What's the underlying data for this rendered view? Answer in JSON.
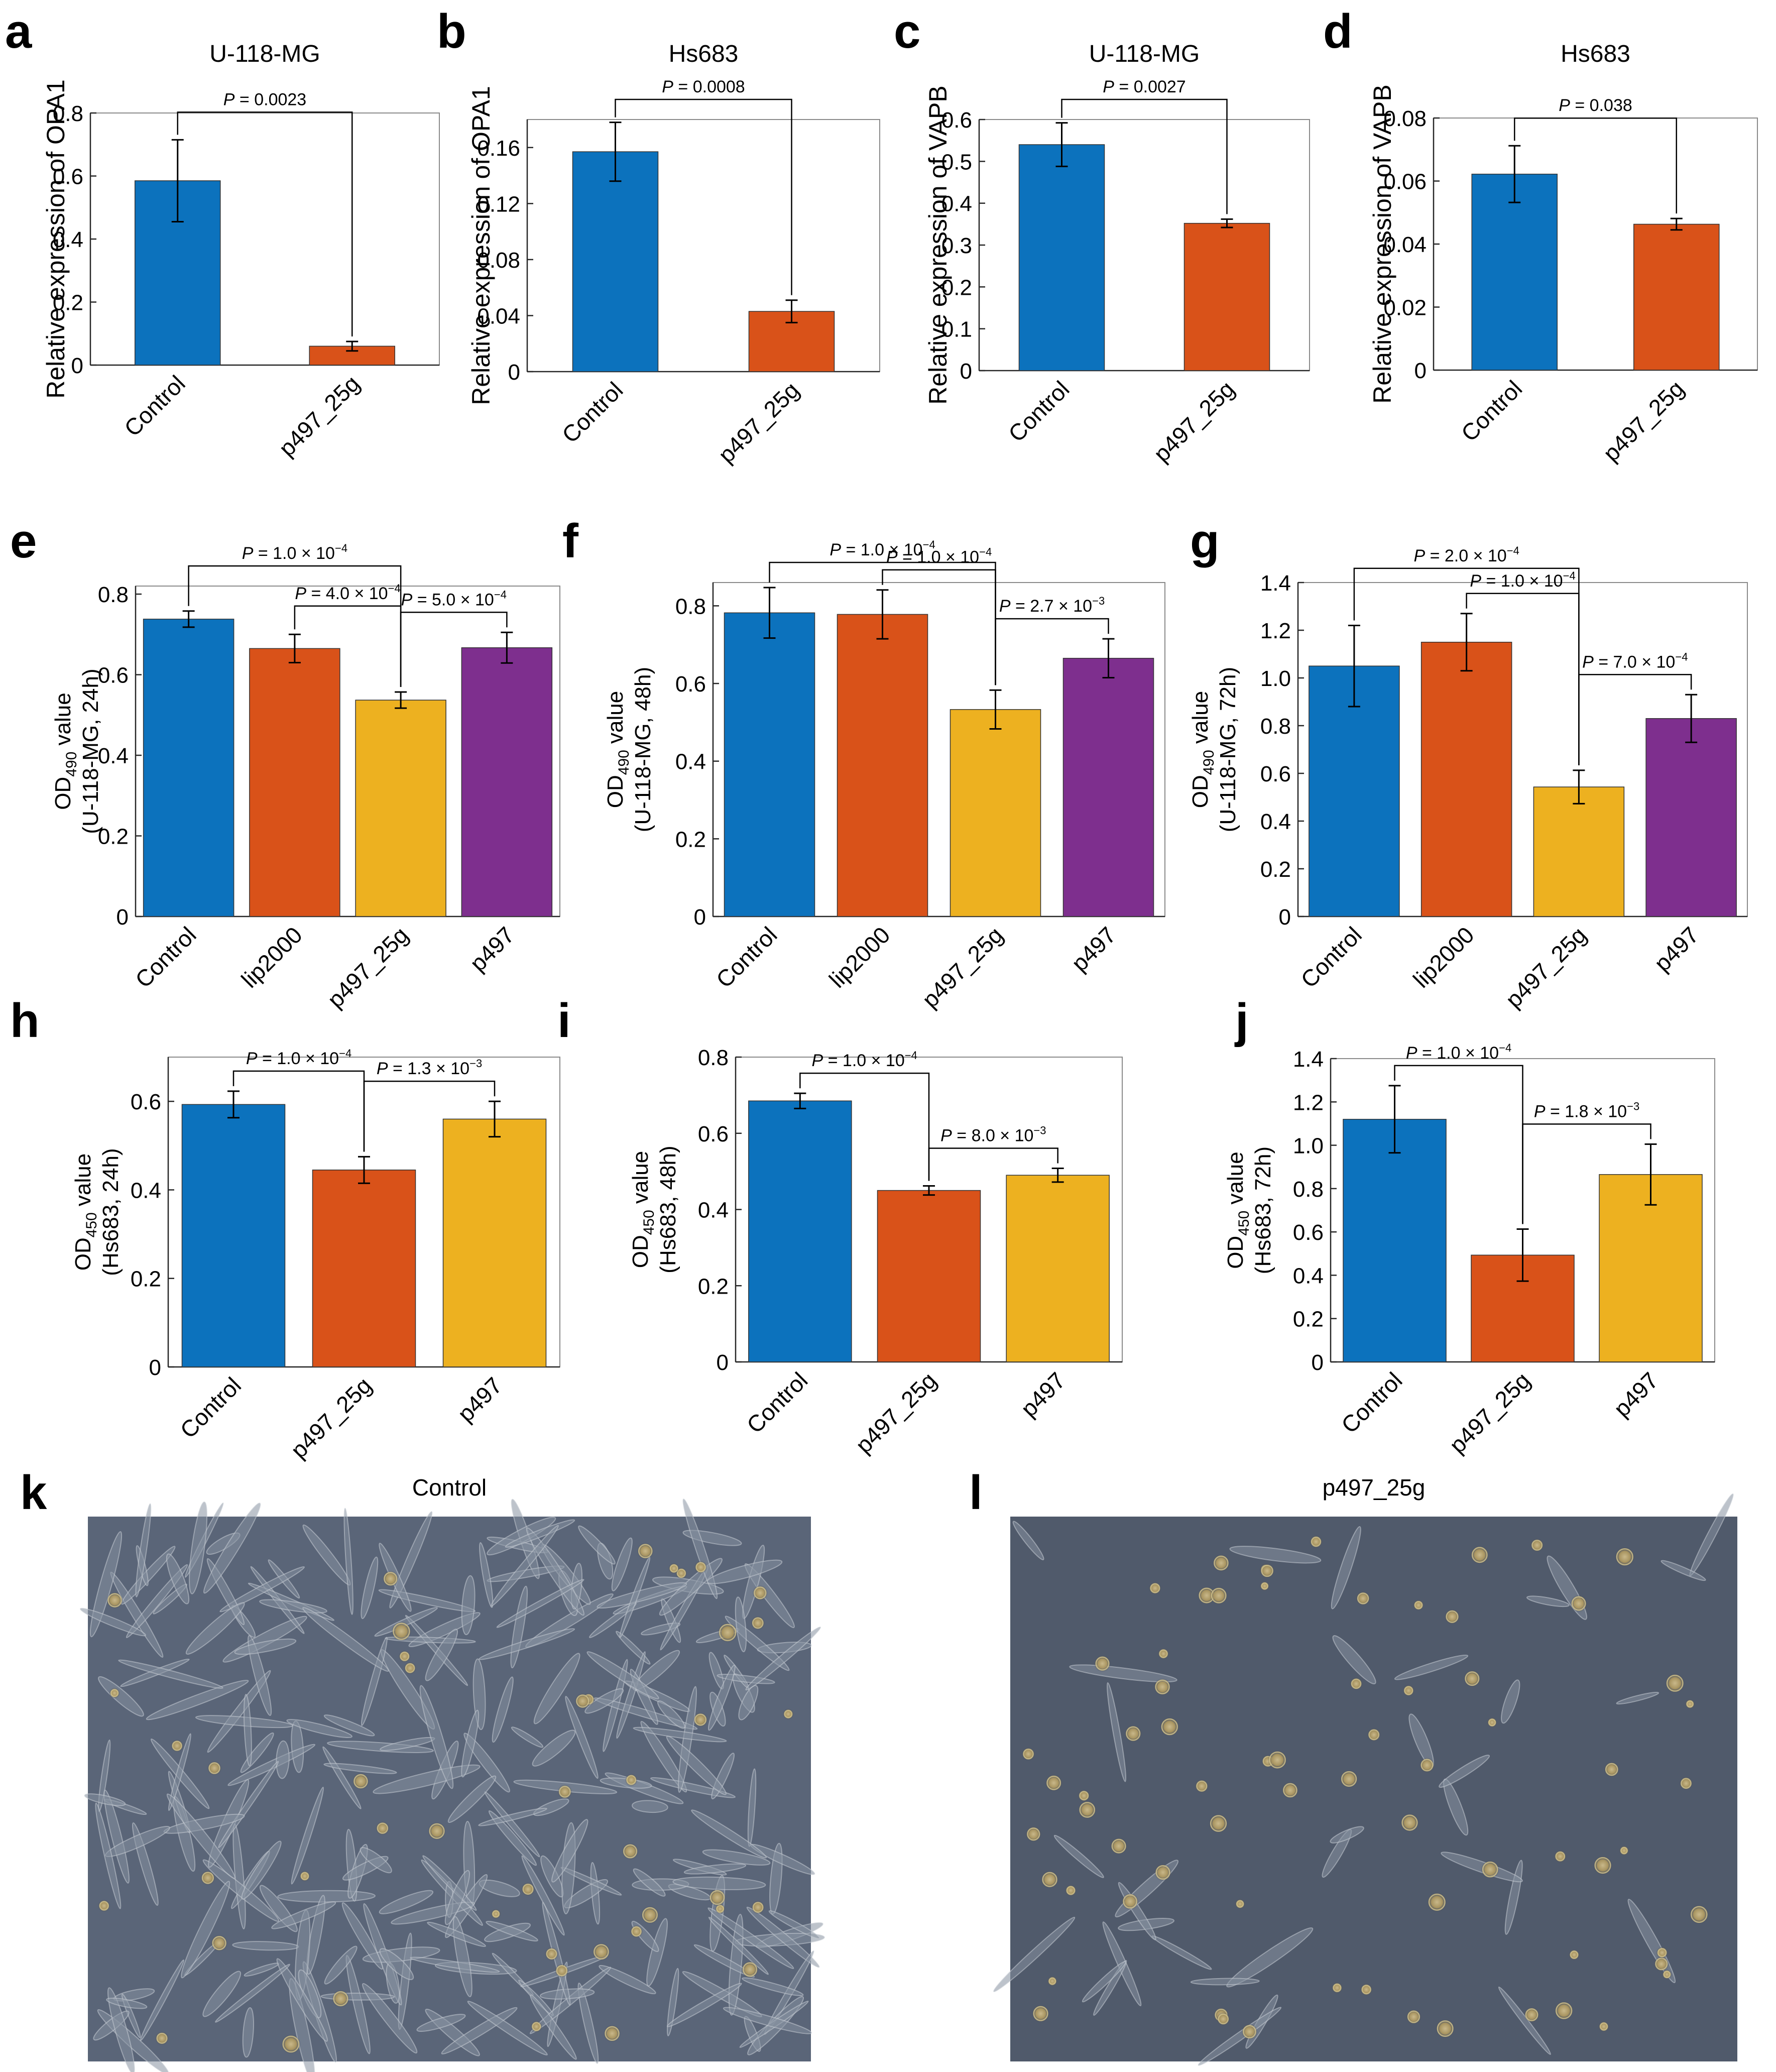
{
  "colors": {
    "blue": "#0C72BD",
    "orange": "#D95219",
    "yellow": "#EDB120",
    "purple": "#7E2F8E",
    "axis": "#262626"
  },
  "chart_data": [
    {
      "type": "bar",
      "panel": "a",
      "title": "U-118-MG",
      "ylabel": "Relative expression of OPA1",
      "categories": [
        "Control",
        "p497_25g"
      ],
      "values": [
        0.585,
        0.06
      ],
      "errors": [
        0.13,
        0.015
      ],
      "ylim": [
        0,
        0.8
      ],
      "yticks": [
        "0",
        "0.2",
        "0.4",
        "0.6",
        "0.8"
      ],
      "yticks_values": [
        0,
        0.2,
        0.4,
        0.6,
        0.8
      ],
      "comparisons": [
        {
          "from": 0,
          "to": 1,
          "label": "= 0.0023"
        }
      ]
    },
    {
      "type": "bar",
      "panel": "b",
      "title": "Hs683",
      "ylabel": "Relative expression of OPA1",
      "categories": [
        "Control",
        "p497_25g"
      ],
      "values": [
        0.157,
        0.043
      ],
      "errors": [
        0.021,
        0.008
      ],
      "ylim": [
        0,
        0.18
      ],
      "yticks": [
        "0",
        "0.04",
        "0.08",
        "0.12",
        "0.16"
      ],
      "yticks_values": [
        0,
        0.04,
        0.08,
        0.12,
        0.16
      ],
      "comparisons": [
        {
          "from": 0,
          "to": 1,
          "label": "= 0.0008"
        }
      ]
    },
    {
      "type": "bar",
      "panel": "c",
      "title": "U-118-MG",
      "ylabel": "Relative expression of VAPB",
      "categories": [
        "Control",
        "p497_25g"
      ],
      "values": [
        0.54,
        0.352
      ],
      "errors": [
        0.052,
        0.01
      ],
      "ylim": [
        0,
        0.6
      ],
      "yticks": [
        "0",
        "0.1",
        "0.2",
        "0.3",
        "0.4",
        "0.5",
        "0.6"
      ],
      "yticks_values": [
        0,
        0.1,
        0.2,
        0.3,
        0.4,
        0.5,
        0.6
      ],
      "comparisons": [
        {
          "from": 0,
          "to": 1,
          "label": "= 0.0027"
        }
      ]
    },
    {
      "type": "bar",
      "panel": "d",
      "title": "Hs683",
      "ylabel": "Relative expression of VAPB",
      "categories": [
        "Control",
        "p497_25g"
      ],
      "values": [
        0.0622,
        0.0463
      ],
      "errors": [
        0.009,
        0.0018
      ],
      "ylim": [
        0,
        0.08
      ],
      "yticks": [
        "0",
        "0.02",
        "0.04",
        "0.06",
        "0.08"
      ],
      "yticks_values": [
        0,
        0.02,
        0.04,
        0.06,
        0.08
      ],
      "comparisons": [
        {
          "from": 0,
          "to": 1,
          "label": "= 0.038"
        }
      ]
    },
    {
      "type": "bar",
      "panel": "e",
      "title": "",
      "ylabel_main": "OD",
      "ylabel_sub": "490",
      "ylabel_rest": " value",
      "ylabel2": "(U-118-MG, 24h)",
      "categories": [
        "Control",
        "lip2000",
        "p497_25g",
        "p497"
      ],
      "values": [
        0.738,
        0.665,
        0.537,
        0.667
      ],
      "errors": [
        0.02,
        0.035,
        0.02,
        0.038
      ],
      "ylim": [
        0,
        0.82
      ],
      "yticks": [
        "0",
        "0.2",
        "0.4",
        "0.6",
        "0.8"
      ],
      "yticks_values": [
        0,
        0.2,
        0.4,
        0.6,
        0.8
      ],
      "comparisons": [
        {
          "from": 0,
          "to": 2,
          "label": "= 1.0 × 10",
          "exp": "−4"
        },
        {
          "from": 1,
          "to": 2,
          "label": "= 4.0 × 10",
          "exp": "−4"
        },
        {
          "from": 2,
          "to": 3,
          "label": "= 5.0 × 10",
          "exp": "−4"
        }
      ]
    },
    {
      "type": "bar",
      "panel": "f",
      "title": "",
      "ylabel_main": "OD",
      "ylabel_sub": "490",
      "ylabel_rest": " value",
      "ylabel2": "(U-118-MG, 48h)",
      "categories": [
        "Control",
        "lip2000",
        "p497_25g",
        "p497"
      ],
      "values": [
        0.782,
        0.778,
        0.533,
        0.665
      ],
      "errors": [
        0.065,
        0.063,
        0.05,
        0.05
      ],
      "ylim": [
        0,
        0.86
      ],
      "yticks": [
        "0",
        "0.2",
        "0.4",
        "0.6",
        "0.8"
      ],
      "yticks_values": [
        0,
        0.2,
        0.4,
        0.6,
        0.8
      ],
      "comparisons": [
        {
          "from": 0,
          "to": 2,
          "label": "= 1.0 × 10",
          "exp": "−4"
        },
        {
          "from": 1,
          "to": 2,
          "label": "= 1.0 × 10",
          "exp": "−4"
        },
        {
          "from": 2,
          "to": 3,
          "label": "= 2.7 × 10",
          "exp": "−3"
        }
      ]
    },
    {
      "type": "bar",
      "panel": "g",
      "title": "",
      "ylabel_main": "OD",
      "ylabel_sub": "490",
      "ylabel_rest": " value",
      "ylabel2": "(U-118-MG, 72h)",
      "categories": [
        "Control",
        "lip2000",
        "p497_25g",
        "p497"
      ],
      "values": [
        1.05,
        1.15,
        0.543,
        0.83
      ],
      "errors": [
        0.17,
        0.12,
        0.07,
        0.1
      ],
      "ylim": [
        0,
        1.4
      ],
      "yticks": [
        "0",
        "0.2",
        "0.4",
        "0.6",
        "0.8",
        "1.0",
        "1.2",
        "1.4"
      ],
      "yticks_values": [
        0,
        0.2,
        0.4,
        0.6,
        0.8,
        1.0,
        1.2,
        1.4
      ],
      "comparisons": [
        {
          "from": 0,
          "to": 2,
          "label": "= 2.0 × 10",
          "exp": "−4"
        },
        {
          "from": 1,
          "to": 2,
          "label": "= 1.0 × 10",
          "exp": "−4"
        },
        {
          "from": 2,
          "to": 3,
          "label": "= 7.0 × 10",
          "exp": "−4"
        }
      ]
    },
    {
      "type": "bar",
      "panel": "h",
      "title": "",
      "ylabel_main": "OD",
      "ylabel_sub": "450",
      "ylabel_rest": " value",
      "ylabel2": "(Hs683, 24h)",
      "categories": [
        "Control",
        "p497_25g",
        "p497"
      ],
      "values": [
        0.593,
        0.445,
        0.56
      ],
      "errors": [
        0.03,
        0.03,
        0.04
      ],
      "ylim": [
        0,
        0.7
      ],
      "yticks": [
        "0",
        "0.2",
        "0.4",
        "0.6"
      ],
      "yticks_values": [
        0,
        0.2,
        0.4,
        0.6
      ],
      "comparisons": [
        {
          "from": 0,
          "to": 1,
          "label": "= 1.0 × 10",
          "exp": "−4"
        },
        {
          "from": 1,
          "to": 2,
          "label": "= 1.3 × 10",
          "exp": "−3"
        }
      ]
    },
    {
      "type": "bar",
      "panel": "i",
      "title": "",
      "ylabel_main": "OD",
      "ylabel_sub": "450",
      "ylabel_rest": " value",
      "ylabel2": "(Hs683, 48h)",
      "categories": [
        "Control",
        "p497_25g",
        "p497"
      ],
      "values": [
        0.685,
        0.45,
        0.49
      ],
      "errors": [
        0.02,
        0.012,
        0.018
      ],
      "ylim": [
        0,
        0.8
      ],
      "yticks": [
        "0",
        "0.2",
        "0.4",
        "0.6",
        "0.8"
      ],
      "yticks_values": [
        0,
        0.2,
        0.4,
        0.6,
        0.8
      ],
      "comparisons": [
        {
          "from": 0,
          "to": 1,
          "label": "= 1.0 × 10",
          "exp": "−4"
        },
        {
          "from": 1,
          "to": 2,
          "label": "= 8.0 × 10",
          "exp": "−3"
        }
      ]
    },
    {
      "type": "bar",
      "panel": "j",
      "title": "",
      "ylabel_main": "OD",
      "ylabel_sub": "450",
      "ylabel_rest": " value",
      "ylabel2": "(Hs683, 72h)",
      "categories": [
        "Control",
        "p497_25g",
        "p497"
      ],
      "values": [
        1.12,
        0.493,
        0.865
      ],
      "errors": [
        0.155,
        0.12,
        0.14
      ],
      "ylim": [
        0,
        1.4
      ],
      "yticks": [
        "0",
        "0.2",
        "0.4",
        "0.6",
        "0.8",
        "1.0",
        "1.2",
        "1.4"
      ],
      "yticks_values": [
        0,
        0.2,
        0.4,
        0.6,
        0.8,
        1.0,
        1.2,
        1.4
      ],
      "comparisons": [
        {
          "from": 0,
          "to": 1,
          "label": "= 1.0 × 10",
          "exp": "−4"
        },
        {
          "from": 1,
          "to": 2,
          "label": "= 1.8 × 10",
          "exp": "−3"
        }
      ]
    }
  ],
  "p_symbol": "P",
  "micrographs": [
    {
      "panel": "k",
      "title": "Control"
    },
    {
      "panel": "l",
      "title": "p497_25g"
    }
  ]
}
